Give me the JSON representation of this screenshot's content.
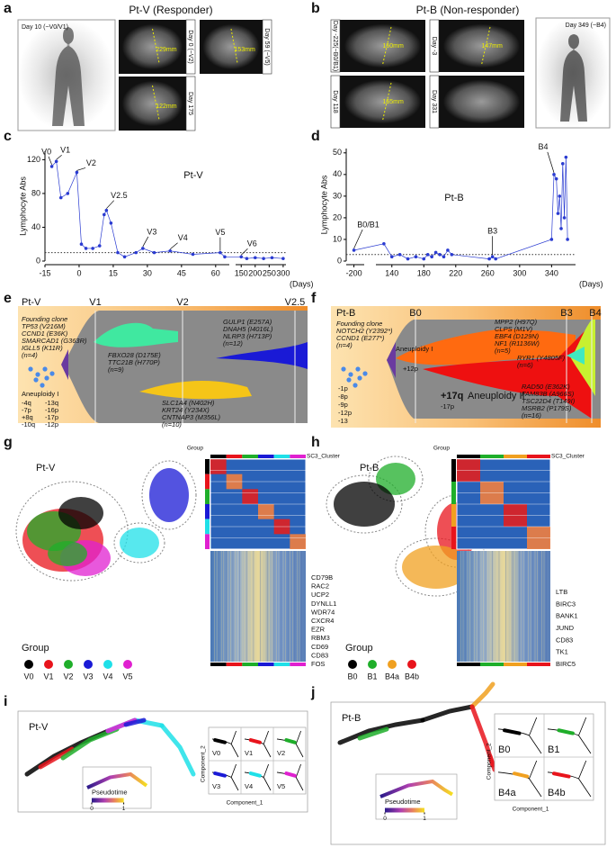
{
  "panels": {
    "a": {
      "letter": "a",
      "title": "Pt-V (Responder)",
      "pet": "Day 10 (~V0/V1)",
      "scans": [
        {
          "day": "Day 0 (~V2)",
          "size": "229mm"
        },
        {
          "day": "Day 59 (~V5)",
          "size": "153mm"
        },
        {
          "day": "Day 175",
          "size": "122mm"
        }
      ]
    },
    "b": {
      "letter": "b",
      "title": "Pt-B (Non-responder)",
      "pet": "Day 349 (~B4)",
      "scans": [
        {
          "day": "Day -225(~B0/B1)",
          "size": "150mm"
        },
        {
          "day": "Day -3",
          "size": "147mm"
        },
        {
          "day": "Day 118",
          "size": "155mm"
        },
        {
          "day": "Day 331"
        }
      ]
    },
    "c": {
      "letter": "c"
    },
    "d": {
      "letter": "d"
    },
    "e": {
      "letter": "e",
      "patient": "Pt-V",
      "timepoints": [
        "V1",
        "V2",
        "V2.5"
      ],
      "founding": [
        "Founding clone",
        "TP53 (V216M)",
        "CCND1 (E36K)",
        "SMARCAD1 (G363R)",
        "IGLL5 (K11R)",
        "(n=4)"
      ],
      "aneuploidy": "Aneuploidy I",
      "cna": [
        "-4q",
        "-13q",
        "-7p",
        "-16p",
        "+8q",
        "-17p",
        "-10q",
        "-12p"
      ],
      "clone_green": [
        "FBXO28 (D175E)",
        "TTC21B (H770P)",
        "(n=9)"
      ],
      "clone_blue": [
        "GULP1 (E257A)",
        "DNAH5 (I4016L)",
        "NLRP3 (H713P)",
        "(n=12)"
      ],
      "clone_yellow": [
        "SLC1A4 (N402H)",
        "KRT24 (Y234X)",
        "CNTNAP3 (M356L)",
        "(n=10)"
      ]
    },
    "f": {
      "letter": "f",
      "patient": "Pt-B",
      "timepoints": [
        "B0",
        "B3",
        "B4"
      ],
      "founding": [
        "Founding clone",
        "NOTCH2 (Y2392*)",
        "CCND1 (E277*)",
        "(n=4)"
      ],
      "aneuploidy": "Aneuploidy I",
      "gain": "+12p",
      "cna": [
        "-1p",
        "-8p",
        "-9p",
        "-12p",
        "-13"
      ],
      "clone_orange": [
        "MPP2 (H97Q)",
        "CLPS (M1V)",
        "EBF4 (D129N)",
        "NF1 (R1136W)",
        "(n=5)"
      ],
      "clone_ryr": [
        "RYR1 (Y4805F)",
        "(n=6)"
      ],
      "aneuploidy2": "Aneuploidy II",
      "cna2": [
        "+17q",
        "-17p"
      ],
      "clone_red": [
        "RAD50 (E362K)",
        "FAM83B (A966S)",
        "TSC22D4 (T149I)",
        "MSRB2 (P179S)",
        "(n=16)"
      ]
    },
    "g": {
      "letter": "g",
      "patient": "Pt-V",
      "heat_group": "Group",
      "heat_cluster": "SC3_Cluster",
      "genes": [
        "CD79B",
        "RAC2",
        "UCP2",
        "DYNLL1",
        "WDR74",
        "CXCR4",
        "EZR",
        "RBM3",
        "CD69",
        "CD83",
        "FOS"
      ],
      "legend_title": "Group",
      "groups": [
        {
          "name": "V0",
          "color": "#000000"
        },
        {
          "name": "V1",
          "color": "#e8141c"
        },
        {
          "name": "V2",
          "color": "#1fae2a"
        },
        {
          "name": "V3",
          "color": "#1a1ad6"
        },
        {
          "name": "V4",
          "color": "#1fe0e8"
        },
        {
          "name": "V5",
          "color": "#e020d0"
        }
      ]
    },
    "h": {
      "letter": "h",
      "patient": "Pt-B",
      "heat_group": "Group",
      "heat_cluster": "SC3_Cluster",
      "genes": [
        "LTB",
        "BIRC3",
        "BANK1",
        "JUND",
        "CD83",
        "TK1",
        "BIRC5"
      ],
      "legend_title": "Group",
      "groups": [
        {
          "name": "B0",
          "color": "#000000"
        },
        {
          "name": "B1",
          "color": "#1fae2a"
        },
        {
          "name": "B4a",
          "color": "#f0a020"
        },
        {
          "name": "B4b",
          "color": "#e8141c"
        }
      ]
    },
    "i": {
      "letter": "i",
      "patient": "Pt-V",
      "ylabel": "Component_2",
      "xlabel": "Component_1",
      "pseudotime": "Pseudotime",
      "colorbar_ticks": [
        0,
        1
      ]
    },
    "j": {
      "letter": "j",
      "patient": "Pt-B",
      "ylabel": "Component_2",
      "xlabel": "Component_1",
      "pseudotime": "Pseudotime",
      "colorbar_ticks": [
        0,
        1
      ]
    }
  },
  "chart_data": [
    {
      "type": "line",
      "title": "Pt-V",
      "ylabel": "Lymphocyte Abs",
      "xlabel": "(Days)",
      "color": "#2a3bd1",
      "x": [
        -12,
        -10,
        -8,
        -5,
        -1,
        1,
        3,
        6,
        9,
        11,
        12,
        14,
        17,
        20,
        25,
        28,
        33,
        40,
        50,
        62,
        64,
        150,
        170,
        200,
        230,
        260,
        300
      ],
      "values": [
        112,
        118,
        75,
        80,
        105,
        20,
        15,
        15,
        18,
        55,
        60,
        45,
        10,
        5,
        10,
        15,
        10,
        12,
        8,
        10,
        5,
        5,
        3,
        4,
        3,
        4,
        3
      ],
      "xlim": [
        -15,
        310
      ],
      "xbreak": [
        66,
        130
      ],
      "xticks": [
        -15,
        0,
        15,
        30,
        45,
        60,
        150,
        200,
        250,
        300
      ],
      "ylim": [
        0,
        130
      ],
      "yticks": [
        0,
        40,
        80,
        120
      ],
      "reference_line": 10,
      "annotations": [
        "V0",
        "V1",
        "V2",
        "V2.5",
        "V3",
        "V4",
        "V5",
        "V6"
      ]
    },
    {
      "type": "line",
      "title": "Pt-B",
      "ylabel": "Lymphocyte Abs",
      "xlabel": "(Days)",
      "color": "#2a3bd1",
      "x": [
        -200,
        130,
        140,
        150,
        160,
        170,
        180,
        185,
        190,
        195,
        200,
        205,
        210,
        215,
        262,
        266,
        270,
        340,
        343,
        346,
        348,
        350,
        352,
        354,
        356,
        358,
        360
      ],
      "values": [
        5,
        8,
        2,
        3,
        1,
        2,
        1,
        3,
        2,
        4,
        3,
        2,
        5,
        3,
        1,
        2,
        1,
        10,
        40,
        38,
        22,
        30,
        15,
        45,
        20,
        48,
        10
      ],
      "xlim": [
        -215,
        370
      ],
      "xbreak": [
        -180,
        120
      ],
      "xticks": [
        -200,
        140,
        180,
        220,
        260,
        300,
        340
      ],
      "ylim": [
        0,
        52
      ],
      "yticks": [
        0,
        10,
        20,
        30,
        40,
        50
      ],
      "reference_line": 3,
      "annotations": [
        "B0/B1",
        "B3",
        "B4"
      ]
    }
  ]
}
